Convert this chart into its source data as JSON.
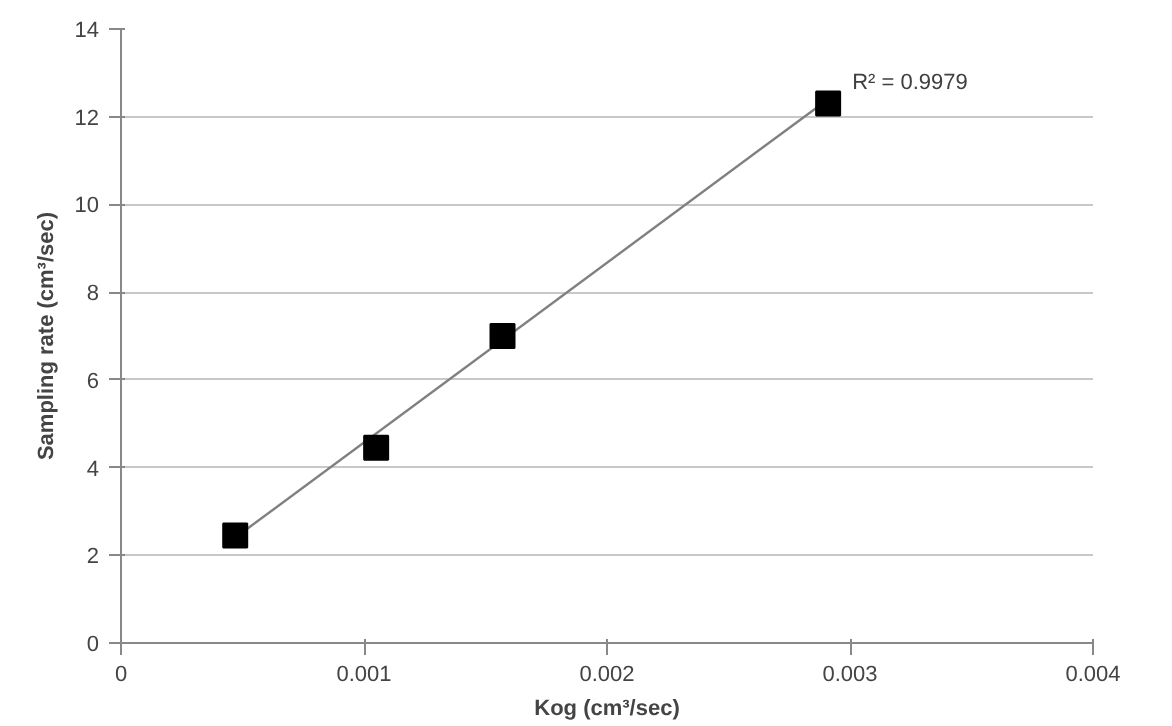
{
  "chart_data": {
    "type": "scatter",
    "xlabel": "Kog (cm³/sec)",
    "ylabel": "Sampling rate (cm³/sec)",
    "xlim": [
      0,
      0.004
    ],
    "xticks": [
      0,
      0.001,
      0.002,
      0.003,
      0.004
    ],
    "ylim": [
      0,
      14
    ],
    "yticks": [
      0,
      2,
      4,
      6,
      8,
      10,
      12,
      14
    ],
    "grid": "y",
    "series": [
      {
        "marker": "square",
        "color": "#000000",
        "x": [
          0.00047,
          0.00105,
          0.00157,
          0.00291
        ],
        "values": [
          2.45,
          4.45,
          7.0,
          12.3
        ]
      },
      {
        "type": "line",
        "color": "#808080",
        "x": [
          0.00047,
          0.00291
        ],
        "values": [
          2.4,
          12.4
        ]
      }
    ],
    "annotations": [
      {
        "text": "R² = 0.9979",
        "x": 0.00291,
        "y": 12.4
      }
    ]
  }
}
